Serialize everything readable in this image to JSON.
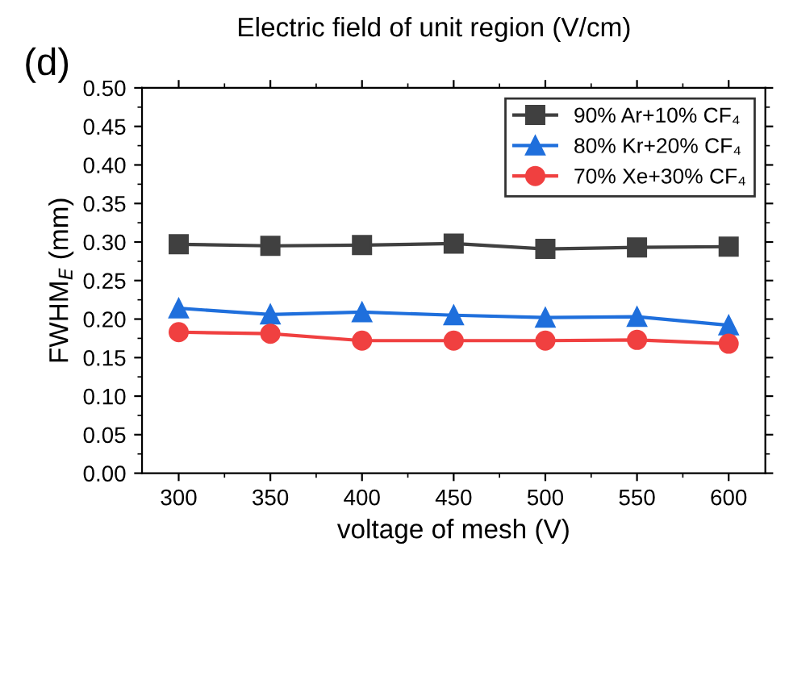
{
  "chart_data": {
    "type": "line",
    "title": "(d)",
    "x2label": "Electric field of unit region (V/cm)",
    "xlabel": "voltage of mesh (V)",
    "ylabel": "FWHM$_{E}$ (mm)",
    "x": [
      300,
      350,
      400,
      450,
      500,
      550,
      600
    ],
    "series": [
      {
        "name": "90% Ar+10% CF₄",
        "color": "#404040",
        "marker": "square",
        "values": [
          0.297,
          0.295,
          0.296,
          0.298,
          0.291,
          0.293,
          0.294
        ]
      },
      {
        "name": "80% Kr+20% CF₄",
        "color": "#1f6fdc",
        "marker": "triangle",
        "values": [
          0.214,
          0.206,
          0.209,
          0.205,
          0.202,
          0.203,
          0.192
        ]
      },
      {
        "name": "70% Xe+30% CF₄",
        "color": "#f04040",
        "marker": "circle",
        "values": [
          0.183,
          0.181,
          0.172,
          0.172,
          0.172,
          0.173,
          0.168
        ]
      }
    ],
    "xlim": [
      280,
      620
    ],
    "xticks": [
      300,
      350,
      400,
      450,
      500,
      550,
      600
    ],
    "ylim": [
      0,
      0.5
    ],
    "yticks": [
      {
        "value": 0,
        "label": "0.00"
      },
      {
        "value": 0.05,
        "label": "0.05"
      },
      {
        "value": 0.1,
        "label": "0.10"
      },
      {
        "value": 0.15,
        "label": "0.15"
      },
      {
        "value": 0.2,
        "label": "0.20"
      },
      {
        "value": 0.25,
        "label": "0.25"
      },
      {
        "value": 0.3,
        "label": "0.30"
      },
      {
        "value": 0.35,
        "label": "0.35"
      },
      {
        "value": 0.4,
        "label": "0.40"
      },
      {
        "value": 0.45,
        "label": "0.45"
      },
      {
        "value": 0.5,
        "label": "0.50"
      }
    ],
    "grid": false,
    "legend": "top right",
    "line_style": "solid"
  }
}
